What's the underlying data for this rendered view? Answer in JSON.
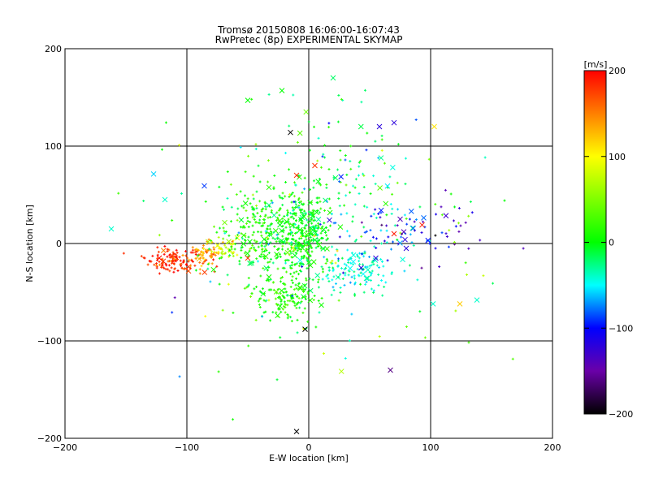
{
  "chart_data": {
    "type": "scatter",
    "title": "Tromsø 20150808 16:06:00-16:07:43",
    "subtitle": "RwPretec (8p) EXPERIMENTAL SKYMAP",
    "xlabel": "E-W location [km]",
    "ylabel": "N-S location [km]",
    "xlim": [
      -200,
      200
    ],
    "ylim": [
      -200,
      200
    ],
    "xticks": [
      -200,
      -100,
      0,
      100,
      200
    ],
    "yticks": [
      -200,
      -100,
      0,
      100,
      200
    ],
    "xtick_labels": [
      "−200",
      "−100",
      "0",
      "100",
      "200"
    ],
    "ytick_labels": [
      "−200",
      "−100",
      "0",
      "100",
      "200"
    ],
    "grid": true,
    "colorbar": {
      "label": "[m/s]",
      "range": [
        -200,
        200
      ],
      "ticks": [
        200,
        100,
        0,
        -100,
        -200
      ],
      "tick_labels": [
        "200",
        "100",
        "0",
        "−100",
        "−200"
      ],
      "colors": [
        "#ff0000",
        "#ffff00",
        "#00ff00",
        "#00ffff",
        "#0000ff",
        "#6a00a8",
        "#000000"
      ]
    },
    "clusters": [
      {
        "x": -110,
        "y": -17,
        "sx": 12,
        "sy": 6,
        "n": 130,
        "v": 180,
        "vs": 18
      },
      {
        "x": -85,
        "y": -12,
        "sx": 6,
        "sy": 6,
        "n": 60,
        "v": 140,
        "vs": 15
      },
      {
        "x": -70,
        "y": -5,
        "sx": 8,
        "sy": 6,
        "n": 40,
        "v": 90,
        "vs": 20
      },
      {
        "x": -40,
        "y": 10,
        "sx": 20,
        "sy": 25,
        "n": 260,
        "v": 10,
        "vs": 18
      },
      {
        "x": -5,
        "y": 10,
        "sx": 12,
        "sy": 22,
        "n": 330,
        "v": 0,
        "vs": 15
      },
      {
        "x": -20,
        "y": -55,
        "sx": 14,
        "sy": 14,
        "n": 140,
        "v": 10,
        "vs": 14
      },
      {
        "x": 40,
        "y": -25,
        "sx": 18,
        "sy": 15,
        "n": 130,
        "v": -40,
        "vs": 15
      },
      {
        "x": 30,
        "y": 60,
        "sx": 30,
        "sy": 35,
        "n": 110,
        "v": -15,
        "vs": 35
      },
      {
        "x": 60,
        "y": 10,
        "sx": 20,
        "sy": 15,
        "n": 50,
        "v": -70,
        "vs": 40
      },
      {
        "x": 110,
        "y": 15,
        "sx": 20,
        "sy": 20,
        "n": 30,
        "v": -130,
        "vs": 30
      },
      {
        "x": 0,
        "y": 0,
        "sx": 70,
        "sy": 70,
        "n": 140,
        "v": 0,
        "vs": 60
      }
    ],
    "markers_x": [
      {
        "x": -162,
        "y": 15,
        "v": -40
      },
      {
        "x": -118,
        "y": 45,
        "v": -40
      },
      {
        "x": -50,
        "y": 147,
        "v": 0
      },
      {
        "x": -22,
        "y": 157,
        "v": 0
      },
      {
        "x": 20,
        "y": 170,
        "v": -20
      },
      {
        "x": -15,
        "y": 114,
        "v": -200
      },
      {
        "x": 58,
        "y": 120,
        "v": -120
      },
      {
        "x": 70,
        "y": 124,
        "v": -120
      },
      {
        "x": 103,
        "y": 120,
        "v": 110
      },
      {
        "x": 17,
        "y": 24,
        "v": -120
      },
      {
        "x": 75,
        "y": 25,
        "v": -140
      },
      {
        "x": 78,
        "y": 12,
        "v": -140
      },
      {
        "x": 70,
        "y": 10,
        "v": 190
      },
      {
        "x": 93,
        "y": 19,
        "v": 190
      },
      {
        "x": 79,
        "y": 4,
        "v": -120
      },
      {
        "x": 55,
        "y": -15,
        "v": -120
      },
      {
        "x": 43,
        "y": -25,
        "v": -120
      },
      {
        "x": 80,
        "y": -5,
        "v": -120
      },
      {
        "x": 124,
        "y": -62,
        "v": 120
      },
      {
        "x": 138,
        "y": -58,
        "v": -40
      },
      {
        "x": 102,
        "y": -62,
        "v": -40
      },
      {
        "x": -50,
        "y": -15,
        "v": 180
      },
      {
        "x": -3,
        "y": -88,
        "v": -200
      },
      {
        "x": -10,
        "y": -193,
        "v": -200
      },
      {
        "x": 67,
        "y": -130,
        "v": -160
      },
      {
        "x": -10,
        "y": 70,
        "v": 180
      },
      {
        "x": 5,
        "y": 80,
        "v": 180
      }
    ]
  }
}
